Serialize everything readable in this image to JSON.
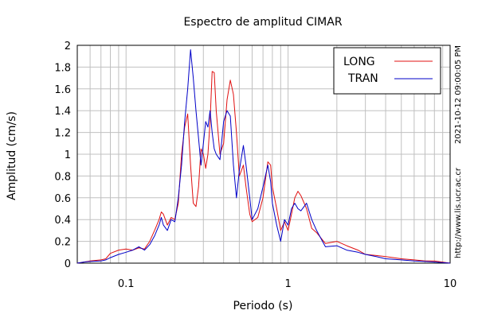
{
  "chart_data": {
    "type": "line",
    "title": "Espectro de amplitud CIMAR",
    "xlabel": "Periodo (s)",
    "ylabel": "Amplitud (cm/s)",
    "x_scale": "log",
    "xlim": [
      0.05,
      10
    ],
    "ylim": [
      0,
      2
    ],
    "x_ticks": [
      {
        "value": 0.1,
        "label": "0.1"
      },
      {
        "value": 1,
        "label": "1"
      },
      {
        "value": 10,
        "label": "10"
      }
    ],
    "y_ticks": [
      {
        "value": 0,
        "label": "0"
      },
      {
        "value": 0.2,
        "label": "0.2"
      },
      {
        "value": 0.4,
        "label": "0.4"
      },
      {
        "value": 0.6,
        "label": "0.6"
      },
      {
        "value": 0.8,
        "label": "0.8"
      },
      {
        "value": 1,
        "label": "1"
      },
      {
        "value": 1.2,
        "label": "1.2"
      },
      {
        "value": 1.4,
        "label": "1.4"
      },
      {
        "value": 1.6,
        "label": "1.6"
      },
      {
        "value": 1.8,
        "label": "1.8"
      },
      {
        "value": 2,
        "label": "2"
      }
    ],
    "grid": true,
    "legend_position": "top-right",
    "series": [
      {
        "name": "LONG",
        "color": "#e01010",
        "points": [
          [
            0.05,
            0.0
          ],
          [
            0.055,
            0.01
          ],
          [
            0.06,
            0.02
          ],
          [
            0.07,
            0.03
          ],
          [
            0.075,
            0.04
          ],
          [
            0.08,
            0.09
          ],
          [
            0.09,
            0.12
          ],
          [
            0.1,
            0.13
          ],
          [
            0.11,
            0.12
          ],
          [
            0.12,
            0.14
          ],
          [
            0.13,
            0.13
          ],
          [
            0.14,
            0.2
          ],
          [
            0.15,
            0.3
          ],
          [
            0.16,
            0.4
          ],
          [
            0.165,
            0.47
          ],
          [
            0.17,
            0.45
          ],
          [
            0.18,
            0.35
          ],
          [
            0.19,
            0.42
          ],
          [
            0.2,
            0.4
          ],
          [
            0.21,
            0.55
          ],
          [
            0.22,
            1.0
          ],
          [
            0.23,
            1.25
          ],
          [
            0.24,
            1.37
          ],
          [
            0.25,
            0.9
          ],
          [
            0.26,
            0.55
          ],
          [
            0.27,
            0.52
          ],
          [
            0.28,
            0.7
          ],
          [
            0.29,
            1.05
          ],
          [
            0.3,
            1.0
          ],
          [
            0.31,
            0.87
          ],
          [
            0.32,
            1.0
          ],
          [
            0.33,
            1.3
          ],
          [
            0.34,
            1.76
          ],
          [
            0.35,
            1.75
          ],
          [
            0.36,
            1.4
          ],
          [
            0.38,
            1.0
          ],
          [
            0.4,
            1.1
          ],
          [
            0.42,
            1.5
          ],
          [
            0.44,
            1.68
          ],
          [
            0.46,
            1.55
          ],
          [
            0.48,
            1.2
          ],
          [
            0.5,
            0.8
          ],
          [
            0.53,
            0.9
          ],
          [
            0.55,
            0.7
          ],
          [
            0.58,
            0.45
          ],
          [
            0.6,
            0.38
          ],
          [
            0.65,
            0.42
          ],
          [
            0.7,
            0.6
          ],
          [
            0.75,
            0.93
          ],
          [
            0.78,
            0.9
          ],
          [
            0.8,
            0.7
          ],
          [
            0.85,
            0.5
          ],
          [
            0.9,
            0.3
          ],
          [
            0.95,
            0.38
          ],
          [
            1.0,
            0.3
          ],
          [
            1.05,
            0.45
          ],
          [
            1.1,
            0.6
          ],
          [
            1.15,
            0.66
          ],
          [
            1.2,
            0.62
          ],
          [
            1.3,
            0.5
          ],
          [
            1.4,
            0.32
          ],
          [
            1.5,
            0.28
          ],
          [
            1.7,
            0.18
          ],
          [
            2.0,
            0.2
          ],
          [
            2.3,
            0.16
          ],
          [
            2.7,
            0.12
          ],
          [
            3.0,
            0.08
          ],
          [
            3.5,
            0.07
          ],
          [
            4.0,
            0.06
          ],
          [
            5.0,
            0.04
          ],
          [
            6.0,
            0.03
          ],
          [
            7.0,
            0.02
          ],
          [
            8.0,
            0.02
          ],
          [
            10.0,
            0.0
          ]
        ]
      },
      {
        "name": "TRAN",
        "color": "#0000c8",
        "points": [
          [
            0.05,
            0.0
          ],
          [
            0.055,
            0.01
          ],
          [
            0.06,
            0.015
          ],
          [
            0.07,
            0.02
          ],
          [
            0.075,
            0.03
          ],
          [
            0.08,
            0.05
          ],
          [
            0.09,
            0.08
          ],
          [
            0.1,
            0.1
          ],
          [
            0.11,
            0.12
          ],
          [
            0.12,
            0.15
          ],
          [
            0.13,
            0.12
          ],
          [
            0.14,
            0.17
          ],
          [
            0.15,
            0.25
          ],
          [
            0.16,
            0.35
          ],
          [
            0.165,
            0.42
          ],
          [
            0.17,
            0.35
          ],
          [
            0.18,
            0.3
          ],
          [
            0.19,
            0.4
          ],
          [
            0.2,
            0.38
          ],
          [
            0.21,
            0.6
          ],
          [
            0.22,
            0.9
          ],
          [
            0.23,
            1.3
          ],
          [
            0.24,
            1.6
          ],
          [
            0.25,
            1.96
          ],
          [
            0.26,
            1.7
          ],
          [
            0.27,
            1.4
          ],
          [
            0.28,
            1.15
          ],
          [
            0.29,
            0.9
          ],
          [
            0.3,
            1.1
          ],
          [
            0.31,
            1.3
          ],
          [
            0.32,
            1.25
          ],
          [
            0.33,
            1.4
          ],
          [
            0.34,
            1.2
          ],
          [
            0.35,
            1.05
          ],
          [
            0.36,
            1.0
          ],
          [
            0.38,
            0.95
          ],
          [
            0.4,
            1.3
          ],
          [
            0.42,
            1.4
          ],
          [
            0.44,
            1.35
          ],
          [
            0.46,
            0.9
          ],
          [
            0.48,
            0.6
          ],
          [
            0.5,
            0.85
          ],
          [
            0.53,
            1.08
          ],
          [
            0.55,
            0.9
          ],
          [
            0.58,
            0.6
          ],
          [
            0.6,
            0.4
          ],
          [
            0.65,
            0.5
          ],
          [
            0.7,
            0.7
          ],
          [
            0.75,
            0.9
          ],
          [
            0.78,
            0.75
          ],
          [
            0.8,
            0.55
          ],
          [
            0.85,
            0.35
          ],
          [
            0.9,
            0.2
          ],
          [
            0.95,
            0.4
          ],
          [
            1.0,
            0.35
          ],
          [
            1.05,
            0.5
          ],
          [
            1.1,
            0.55
          ],
          [
            1.15,
            0.5
          ],
          [
            1.2,
            0.48
          ],
          [
            1.3,
            0.55
          ],
          [
            1.4,
            0.4
          ],
          [
            1.5,
            0.3
          ],
          [
            1.7,
            0.15
          ],
          [
            2.0,
            0.16
          ],
          [
            2.3,
            0.12
          ],
          [
            2.7,
            0.1
          ],
          [
            3.0,
            0.08
          ],
          [
            3.5,
            0.06
          ],
          [
            4.0,
            0.04
          ],
          [
            5.0,
            0.03
          ],
          [
            6.0,
            0.02
          ],
          [
            7.0,
            0.015
          ],
          [
            8.0,
            0.01
          ],
          [
            10.0,
            0.0
          ]
        ]
      }
    ],
    "timestamp": "2021-10-12 09:00:05 PM",
    "url": "http://www.lis.ucr.ac.cr"
  }
}
